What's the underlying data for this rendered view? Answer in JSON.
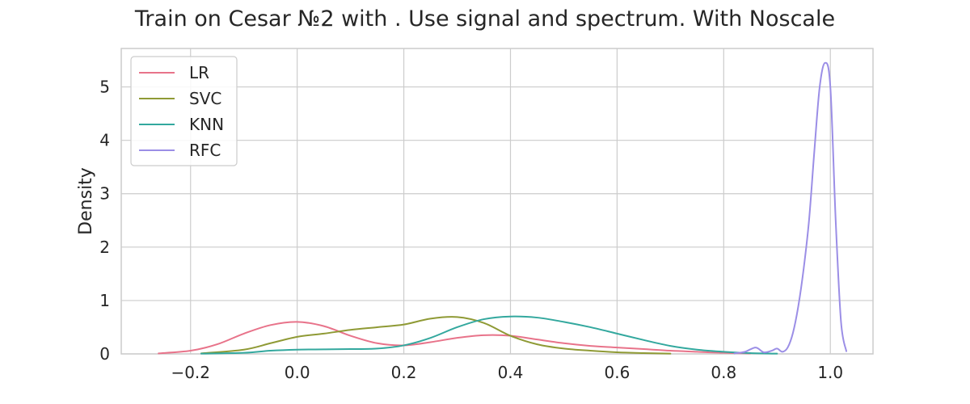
{
  "chart_data": {
    "type": "line",
    "title": "Train on Cesar №2 with . Use signal and spectrum. With Noscale",
    "ylabel": "Density",
    "xlabel": "",
    "xlim": [
      -0.33,
      1.08
    ],
    "ylim": [
      0,
      5.72
    ],
    "x_ticks": [
      -0.2,
      0.0,
      0.2,
      0.4,
      0.6,
      0.8,
      1.0
    ],
    "x_tick_labels": [
      "−0.2",
      "0.0",
      "0.2",
      "0.4",
      "0.6",
      "0.8",
      "1.0"
    ],
    "y_ticks": [
      0,
      1,
      2,
      3,
      4,
      5
    ],
    "y_tick_labels": [
      "0",
      "1",
      "2",
      "3",
      "4",
      "5"
    ],
    "grid": true,
    "legend_position": "top-left",
    "series": [
      {
        "name": "LR",
        "color": "#e8738a",
        "x": [
          -0.26,
          -0.2,
          -0.15,
          -0.1,
          -0.05,
          0.0,
          0.05,
          0.1,
          0.15,
          0.2,
          0.25,
          0.3,
          0.35,
          0.4,
          0.45,
          0.5,
          0.55,
          0.6,
          0.65,
          0.7,
          0.75,
          0.8,
          0.85
        ],
        "y": [
          0.01,
          0.06,
          0.18,
          0.38,
          0.54,
          0.6,
          0.52,
          0.34,
          0.2,
          0.16,
          0.22,
          0.3,
          0.35,
          0.34,
          0.27,
          0.2,
          0.15,
          0.12,
          0.09,
          0.06,
          0.04,
          0.02,
          0.01
        ]
      },
      {
        "name": "SVC",
        "color": "#8f9a35",
        "x": [
          -0.18,
          -0.1,
          -0.05,
          0.0,
          0.05,
          0.1,
          0.15,
          0.2,
          0.25,
          0.3,
          0.35,
          0.4,
          0.45,
          0.5,
          0.55,
          0.6,
          0.65,
          0.7
        ],
        "y": [
          0.01,
          0.08,
          0.2,
          0.32,
          0.38,
          0.45,
          0.5,
          0.55,
          0.66,
          0.69,
          0.58,
          0.34,
          0.18,
          0.1,
          0.06,
          0.03,
          0.015,
          0.005
        ]
      },
      {
        "name": "KNN",
        "color": "#33a89e",
        "x": [
          -0.18,
          -0.1,
          -0.05,
          0.0,
          0.05,
          0.1,
          0.15,
          0.2,
          0.25,
          0.3,
          0.35,
          0.4,
          0.45,
          0.5,
          0.55,
          0.6,
          0.65,
          0.7,
          0.75,
          0.8,
          0.85,
          0.9
        ],
        "y": [
          0.005,
          0.02,
          0.06,
          0.08,
          0.085,
          0.09,
          0.1,
          0.16,
          0.3,
          0.5,
          0.65,
          0.7,
          0.68,
          0.6,
          0.5,
          0.38,
          0.26,
          0.15,
          0.08,
          0.04,
          0.015,
          0.005
        ]
      },
      {
        "name": "RFC",
        "color": "#9b8ee6",
        "x": [
          0.82,
          0.84,
          0.86,
          0.875,
          0.89,
          0.9,
          0.91,
          0.92,
          0.93,
          0.94,
          0.95,
          0.96,
          0.97,
          0.98,
          0.99,
          1.0,
          1.01,
          1.02,
          1.03
        ],
        "y": [
          0.01,
          0.04,
          0.12,
          0.03,
          0.06,
          0.1,
          0.04,
          0.12,
          0.4,
          0.9,
          1.6,
          2.5,
          3.8,
          5.0,
          5.45,
          5.0,
          2.5,
          0.6,
          0.05
        ]
      }
    ]
  }
}
